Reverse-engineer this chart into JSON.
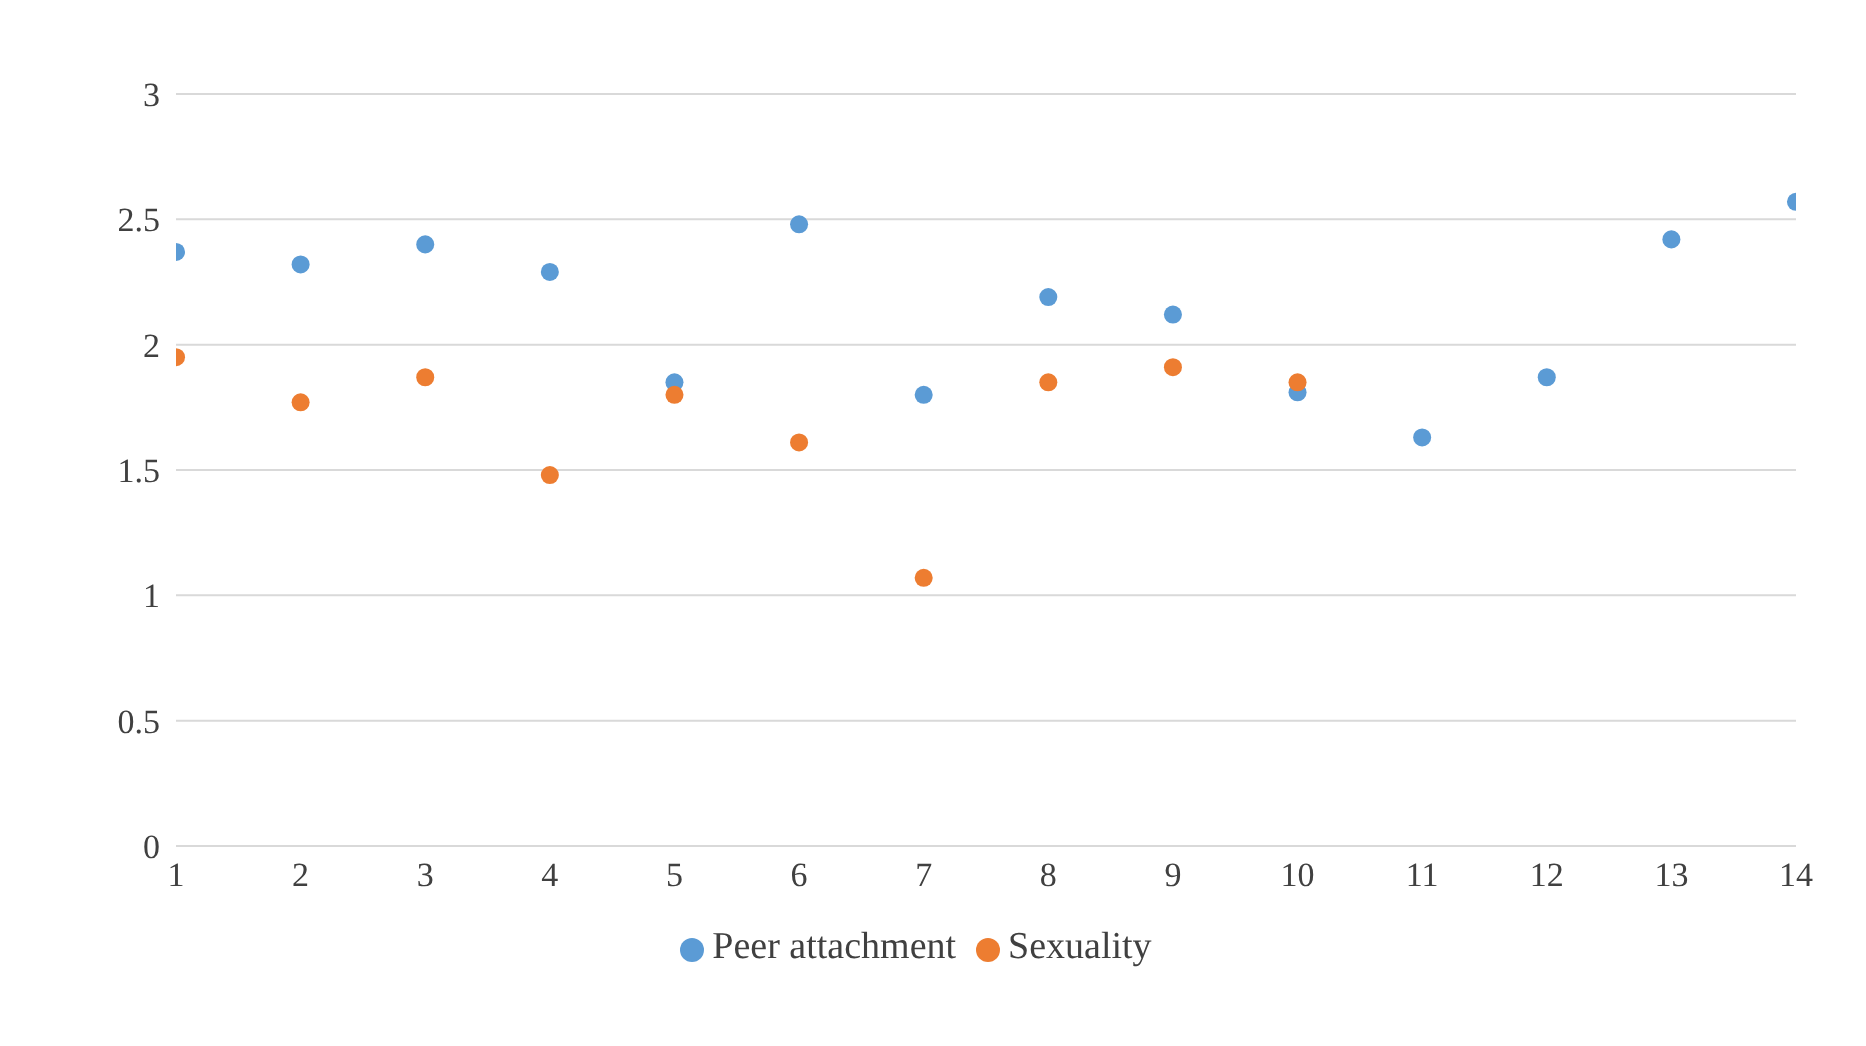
{
  "chart_data": {
    "type": "scatter",
    "x": [
      1,
      2,
      3,
      4,
      5,
      6,
      7,
      8,
      9,
      10,
      11,
      12,
      13,
      14
    ],
    "series": [
      {
        "name": "Peer attachment",
        "color": "#5b9bd5",
        "values": [
          2.37,
          2.32,
          2.4,
          2.29,
          1.85,
          2.48,
          1.8,
          2.19,
          2.12,
          1.81,
          1.63,
          1.87,
          2.42,
          2.57
        ]
      },
      {
        "name": "Sexuality",
        "color": "#ed7d31",
        "values": [
          1.95,
          1.77,
          1.87,
          1.48,
          1.8,
          1.61,
          1.07,
          1.85,
          1.91,
          1.85,
          null,
          null,
          null,
          null
        ]
      }
    ],
    "xlim": [
      1,
      14
    ],
    "xticks": [
      1,
      2,
      3,
      4,
      5,
      6,
      7,
      8,
      9,
      10,
      11,
      12,
      13,
      14
    ],
    "ylim": [
      0,
      3
    ],
    "yticks": [
      0,
      0.5,
      1,
      1.5,
      2,
      2.5,
      3
    ],
    "grid": "y",
    "legend": "bottom",
    "marker": "circle"
  }
}
